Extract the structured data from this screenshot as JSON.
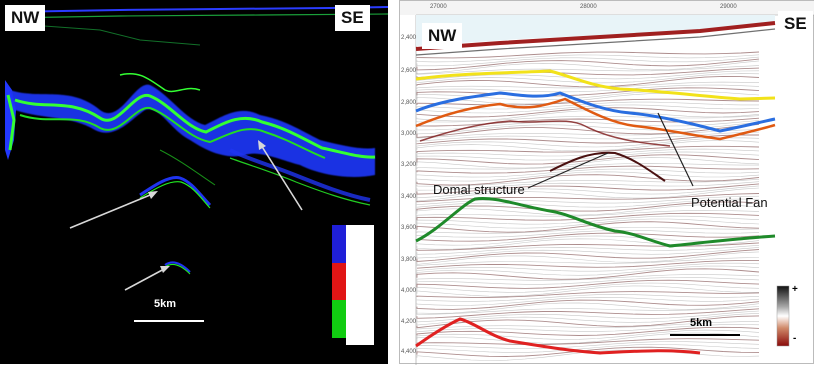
{
  "left_panel": {
    "nw_label": "NW",
    "se_label": "SE",
    "scale_label": "5km",
    "colorbar_colors": [
      "#1f1fd8",
      "#e01515",
      "#11cc11"
    ],
    "colors": {
      "background": "#000000",
      "blue": "#1f3dff",
      "green": "#22ff22"
    }
  },
  "right_panel": {
    "nw_label": "NW",
    "se_label": "SE",
    "scale_label": "5km",
    "top_axis_ticks": [
      "27000",
      "28000",
      "29000"
    ],
    "depth_ticks": [
      "2,400",
      "2,600",
      "2,800",
      "3,000",
      "3,200",
      "3,400",
      "3,600",
      "3,800",
      "4,000",
      "4,200",
      "4,400"
    ],
    "annotations": {
      "domal": "Domal structure",
      "fan": "Potential Fan"
    },
    "colorbar": {
      "plus": "+",
      "minus": "-"
    },
    "colors": {
      "yellow_horizon": "#f2e21a",
      "blue_horizon": "#2a6ee0",
      "orange_horizon": "#e05a12",
      "green_horizon": "#1f8a2a",
      "red_horizon": "#e02020"
    }
  }
}
